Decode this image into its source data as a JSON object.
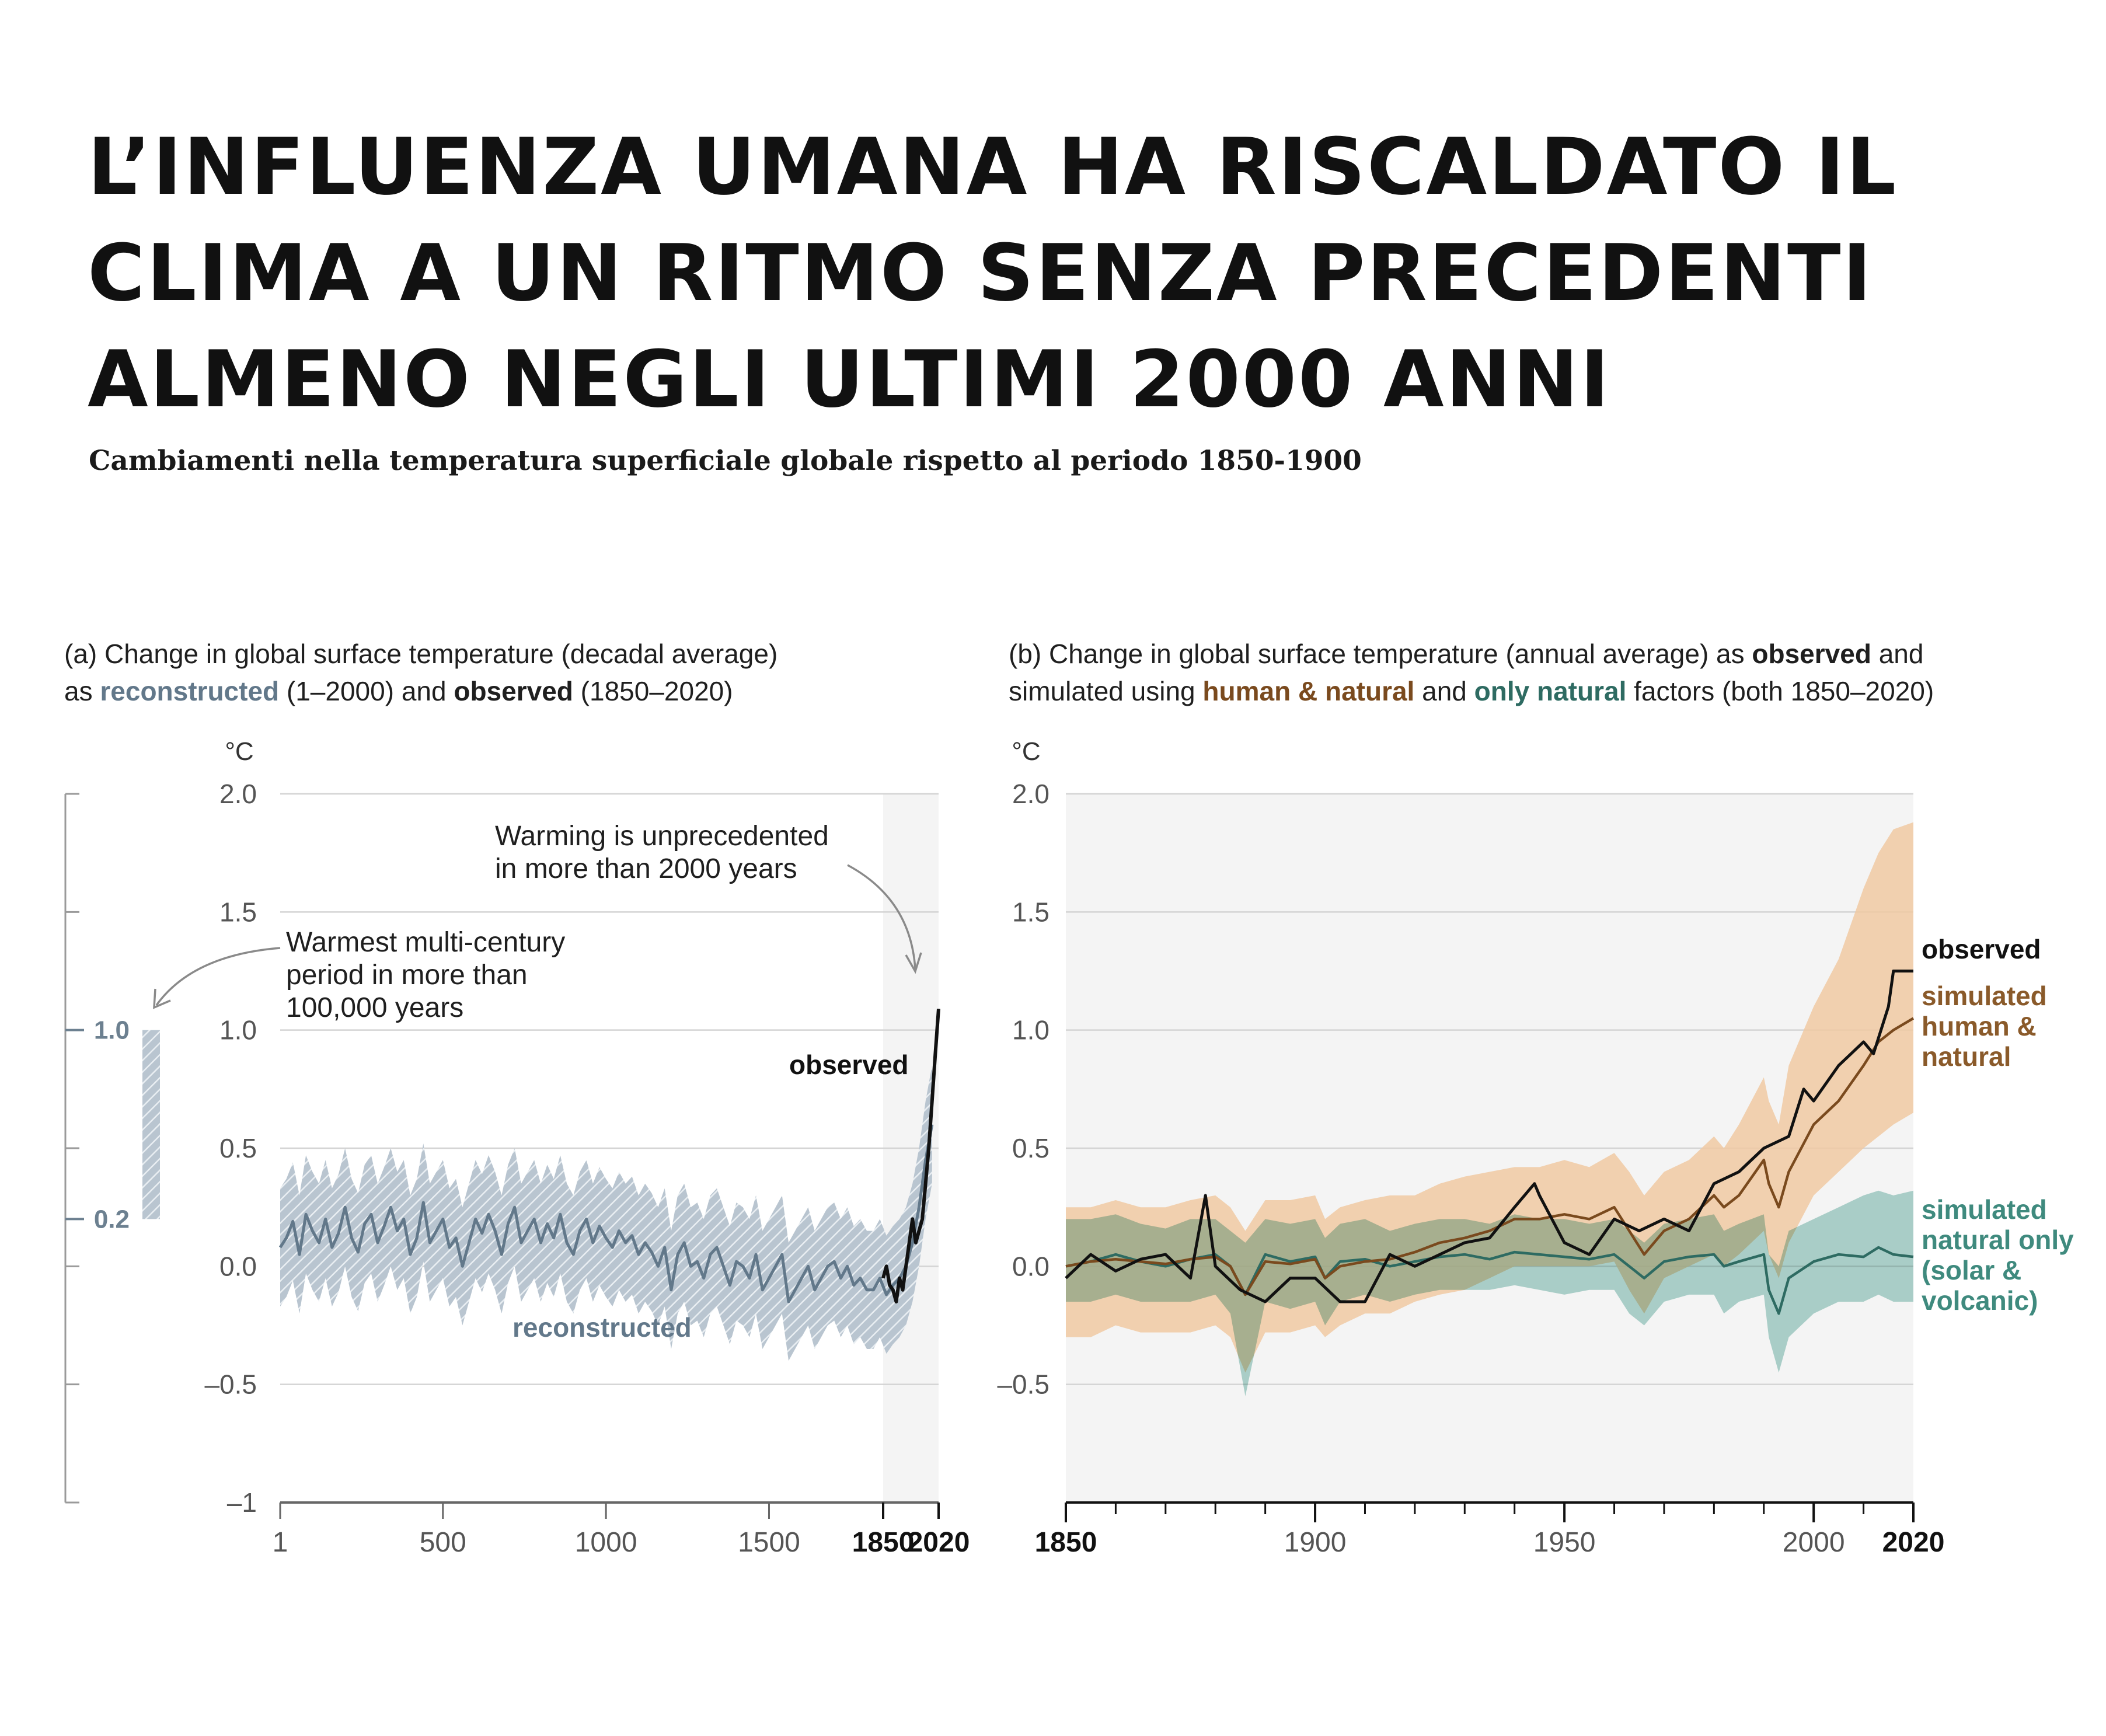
{
  "title_lines": [
    "L’INFLUENZA UMANA HA RISCALDATO IL",
    "CLIMA A UN RITMO SENZA PRECEDENTI",
    "ALMENO NEGLI ULTIMI 2000 ANNI"
  ],
  "subtitle": "Cambiamenti nella temperatura superficiale globale rispetto al periodo 1850-1900",
  "colors": {
    "reconstructed": "#62788a",
    "reconstructed_band": "#b9c5d0",
    "observed": "#111111",
    "human_natural": "#7a4a1e",
    "human_natural_band": "#f0c9a2",
    "natural_only": "#2e6b62",
    "natural_only_band": "#7dbdb0",
    "highlight": "#f4f4f4",
    "grid": "#d4d4d4",
    "axis": "#666666"
  },
  "chart_data": [
    {
      "id": "a",
      "type": "line",
      "caption": {
        "l1": "(a) Change in global surface temperature (decadal average)",
        "l2_pre": "as ",
        "l2_recon": "reconstructed",
        "l2_mid": " (1–2000) and ",
        "l2_obs": "observed",
        "l2_post": " (1850–2020)"
      },
      "unit": "°C",
      "ylim": [
        -1,
        2
      ],
      "yticks": [
        {
          "v": 2,
          "label": "2.0"
        },
        {
          "v": 1.5,
          "label": "1.5"
        },
        {
          "v": 1,
          "label": "1.0"
        },
        {
          "v": 0.5,
          "label": "0.5"
        },
        {
          "v": 0,
          "label": "0.0"
        },
        {
          "v": -0.5,
          "label": "–0.5"
        },
        {
          "v": -1,
          "label": "–1"
        }
      ],
      "xlim": [
        1,
        2020
      ],
      "xticks": [
        {
          "v": 1,
          "label": "1",
          "bold": false
        },
        {
          "v": 500,
          "label": "500",
          "bold": false
        },
        {
          "v": 1000,
          "label": "1000",
          "bold": false
        },
        {
          "v": 1500,
          "label": "1500",
          "bold": false
        },
        {
          "v": 1850,
          "label": "1850",
          "bold": true
        },
        {
          "v": 2020,
          "label": "2020",
          "bold": true
        }
      ],
      "highlight_range": [
        1850,
        2020
      ],
      "series": [
        {
          "name": "reconstructed",
          "band_width": 0.25,
          "x": [
            1,
            20,
            40,
            60,
            80,
            100,
            120,
            140,
            160,
            180,
            200,
            220,
            240,
            260,
            280,
            300,
            320,
            340,
            360,
            380,
            400,
            420,
            440,
            460,
            480,
            500,
            520,
            540,
            560,
            580,
            600,
            620,
            640,
            660,
            680,
            700,
            720,
            740,
            760,
            780,
            800,
            820,
            840,
            860,
            880,
            900,
            920,
            940,
            960,
            980,
            1000,
            1020,
            1040,
            1060,
            1080,
            1100,
            1120,
            1140,
            1160,
            1180,
            1200,
            1220,
            1240,
            1260,
            1280,
            1300,
            1320,
            1340,
            1360,
            1380,
            1400,
            1420,
            1440,
            1460,
            1480,
            1500,
            1520,
            1540,
            1560,
            1580,
            1600,
            1620,
            1640,
            1660,
            1680,
            1700,
            1720,
            1740,
            1760,
            1780,
            1800,
            1820,
            1840,
            1860,
            1880,
            1900,
            1920,
            1940,
            1960,
            1980,
            2000
          ],
          "y": [
            0.08,
            0.12,
            0.19,
            0.05,
            0.22,
            0.15,
            0.1,
            0.2,
            0.08,
            0.14,
            0.25,
            0.12,
            0.06,
            0.18,
            0.22,
            0.1,
            0.17,
            0.25,
            0.15,
            0.2,
            0.05,
            0.12,
            0.27,
            0.1,
            0.15,
            0.2,
            0.08,
            0.12,
            0.0,
            0.1,
            0.2,
            0.14,
            0.22,
            0.15,
            0.05,
            0.18,
            0.25,
            0.1,
            0.15,
            0.2,
            0.1,
            0.18,
            0.12,
            0.22,
            0.1,
            0.05,
            0.15,
            0.2,
            0.1,
            0.17,
            0.12,
            0.08,
            0.15,
            0.1,
            0.13,
            0.05,
            0.1,
            0.06,
            0.0,
            0.08,
            -0.1,
            0.05,
            0.1,
            0.0,
            0.02,
            -0.05,
            0.05,
            0.08,
            0.0,
            -0.08,
            0.02,
            0.0,
            -0.05,
            0.05,
            -0.1,
            -0.05,
            0.0,
            0.05,
            -0.15,
            -0.1,
            -0.05,
            0.0,
            -0.1,
            -0.05,
            0.0,
            0.02,
            -0.05,
            0.0,
            -0.08,
            -0.05,
            -0.1,
            -0.1,
            -0.05,
            -0.12,
            -0.08,
            -0.05,
            0.0,
            0.1,
            0.25,
            0.45,
            0.6
          ]
        },
        {
          "name": "observed",
          "label": "observed",
          "x": [
            1850,
            1860,
            1870,
            1880,
            1890,
            1900,
            1910,
            1920,
            1930,
            1940,
            1950,
            1960,
            1970,
            1980,
            1990,
            2000,
            2010,
            2020
          ],
          "y": [
            -0.05,
            0.0,
            -0.08,
            -0.1,
            -0.15,
            -0.05,
            -0.1,
            0.0,
            0.1,
            0.2,
            0.1,
            0.15,
            0.2,
            0.35,
            0.5,
            0.7,
            0.9,
            1.09
          ]
        }
      ],
      "annotations": {
        "reconstructed_label": "reconstructed",
        "observed_label": "observed",
        "unprecedented": [
          "Warming is unprecedented",
          "in more than 2000 years"
        ],
        "warmest": [
          "Warmest multi-century",
          "period in more than",
          "100,000 years"
        ]
      },
      "side_scale": {
        "ylim": [
          -1,
          2
        ],
        "top": 1.0,
        "bottom": 0.2,
        "top_label": "1.0",
        "bottom_label": "0.2"
      }
    },
    {
      "id": "b",
      "type": "line",
      "caption": {
        "l1_pre": "(b) Change in global surface temperature (annual average) as ",
        "l1_obs": "observed",
        "l1_post": " and",
        "l2_pre": "simulated using ",
        "l2_hn": "human & natural",
        "l2_mid": " and ",
        "l2_nat": "only natural",
        "l2_post": " factors (both 1850–2020)"
      },
      "unit": "°C",
      "ylim": [
        -1,
        2
      ],
      "yticks": [
        {
          "v": 2,
          "label": "2.0"
        },
        {
          "v": 1.5,
          "label": "1.5"
        },
        {
          "v": 1,
          "label": "1.0"
        },
        {
          "v": 0.5,
          "label": "0.5"
        },
        {
          "v": 0,
          "label": "0.0"
        },
        {
          "v": -0.5,
          "label": "–0.5"
        }
      ],
      "xlim": [
        1850,
        2020
      ],
      "xticks": [
        {
          "v": 1850,
          "label": "1850",
          "bold": true
        },
        {
          "v": 1900,
          "label": "1900",
          "bold": false
        },
        {
          "v": 1950,
          "label": "1950",
          "bold": false
        },
        {
          "v": 2000,
          "label": "2000",
          "bold": false
        },
        {
          "v": 2020,
          "label": "2020",
          "bold": true
        }
      ],
      "minor_xtick_step": 10,
      "series": [
        {
          "name": "simulated natural only",
          "label_lines": [
            "simulated",
            "natural only",
            "(solar &",
            "volcanic)"
          ],
          "x": [
            1850,
            1855,
            1860,
            1865,
            1870,
            1875,
            1880,
            1883,
            1886,
            1890,
            1895,
            1900,
            1902,
            1905,
            1910,
            1915,
            1920,
            1925,
            1930,
            1935,
            1940,
            1945,
            1950,
            1955,
            1960,
            1963,
            1966,
            1970,
            1975,
            1980,
            1982,
            1985,
            1990,
            1991,
            1993,
            1995,
            2000,
            2005,
            2010,
            2013,
            2016,
            2020
          ],
          "y": [
            0.0,
            0.02,
            0.05,
            0.02,
            0.0,
            0.03,
            0.05,
            0.0,
            -0.12,
            0.05,
            0.02,
            0.04,
            -0.05,
            0.02,
            0.03,
            0.0,
            0.02,
            0.04,
            0.05,
            0.03,
            0.06,
            0.05,
            0.04,
            0.03,
            0.05,
            0.0,
            -0.05,
            0.02,
            0.04,
            0.05,
            0.0,
            0.02,
            0.05,
            -0.1,
            -0.2,
            -0.05,
            0.02,
            0.05,
            0.04,
            0.08,
            0.05,
            0.04
          ],
          "band_lo": [
            -0.15,
            -0.15,
            -0.12,
            -0.15,
            -0.15,
            -0.15,
            -0.12,
            -0.2,
            -0.55,
            -0.15,
            -0.18,
            -0.15,
            -0.25,
            -0.15,
            -0.12,
            -0.15,
            -0.12,
            -0.1,
            -0.1,
            -0.1,
            -0.08,
            -0.1,
            -0.12,
            -0.1,
            -0.1,
            -0.2,
            -0.25,
            -0.15,
            -0.12,
            -0.12,
            -0.2,
            -0.15,
            -0.12,
            -0.3,
            -0.45,
            -0.3,
            -0.2,
            -0.15,
            -0.15,
            -0.12,
            -0.15,
            -0.15
          ],
          "band_hi": [
            0.2,
            0.2,
            0.22,
            0.18,
            0.16,
            0.2,
            0.2,
            0.15,
            0.1,
            0.2,
            0.18,
            0.2,
            0.12,
            0.18,
            0.2,
            0.15,
            0.18,
            0.2,
            0.2,
            0.18,
            0.22,
            0.2,
            0.2,
            0.18,
            0.2,
            0.15,
            0.1,
            0.18,
            0.2,
            0.22,
            0.15,
            0.18,
            0.22,
            0.05,
            0.0,
            0.15,
            0.2,
            0.25,
            0.3,
            0.32,
            0.3,
            0.32
          ]
        },
        {
          "name": "simulated human & natural",
          "label_lines": [
            "simulated",
            "human &",
            "natural"
          ],
          "x": [
            1850,
            1855,
            1860,
            1865,
            1870,
            1875,
            1880,
            1883,
            1886,
            1890,
            1895,
            1900,
            1902,
            1905,
            1910,
            1915,
            1920,
            1925,
            1930,
            1935,
            1940,
            1945,
            1950,
            1955,
            1960,
            1963,
            1966,
            1970,
            1975,
            1980,
            1982,
            1985,
            1990,
            1991,
            1993,
            1995,
            2000,
            2005,
            2010,
            2013,
            2016,
            2020
          ],
          "y": [
            0.0,
            0.02,
            0.03,
            0.02,
            0.01,
            0.03,
            0.04,
            0.0,
            -0.12,
            0.02,
            0.01,
            0.03,
            -0.05,
            0.0,
            0.02,
            0.03,
            0.06,
            0.1,
            0.12,
            0.15,
            0.2,
            0.2,
            0.22,
            0.2,
            0.25,
            0.15,
            0.05,
            0.15,
            0.2,
            0.3,
            0.25,
            0.3,
            0.45,
            0.35,
            0.25,
            0.4,
            0.6,
            0.7,
            0.85,
            0.95,
            1.0,
            1.05
          ],
          "band_lo": [
            -0.3,
            -0.3,
            -0.25,
            -0.28,
            -0.28,
            -0.28,
            -0.25,
            -0.3,
            -0.45,
            -0.28,
            -0.28,
            -0.25,
            -0.3,
            -0.25,
            -0.2,
            -0.2,
            -0.15,
            -0.12,
            -0.1,
            -0.05,
            0.0,
            0.0,
            0.0,
            0.0,
            0.02,
            -0.1,
            -0.2,
            -0.05,
            0.0,
            0.05,
            0.0,
            0.05,
            0.15,
            0.05,
            -0.05,
            0.1,
            0.3,
            0.4,
            0.5,
            0.55,
            0.6,
            0.65
          ],
          "band_hi": [
            0.25,
            0.25,
            0.28,
            0.25,
            0.25,
            0.28,
            0.3,
            0.25,
            0.15,
            0.28,
            0.28,
            0.3,
            0.2,
            0.25,
            0.28,
            0.3,
            0.3,
            0.35,
            0.38,
            0.4,
            0.42,
            0.42,
            0.45,
            0.42,
            0.48,
            0.4,
            0.3,
            0.4,
            0.45,
            0.55,
            0.5,
            0.6,
            0.8,
            0.7,
            0.6,
            0.85,
            1.1,
            1.3,
            1.6,
            1.75,
            1.85,
            1.88
          ]
        },
        {
          "name": "observed",
          "label": "observed",
          "x": [
            1850,
            1855,
            1860,
            1865,
            1870,
            1875,
            1878,
            1880,
            1885,
            1890,
            1895,
            1900,
            1905,
            1910,
            1915,
            1920,
            1925,
            1930,
            1935,
            1940,
            1944,
            1945,
            1950,
            1955,
            1960,
            1965,
            1970,
            1975,
            1980,
            1985,
            1990,
            1995,
            1998,
            2000,
            2005,
            2010,
            2012,
            2015,
            2016,
            2020
          ],
          "y": [
            -0.05,
            0.05,
            -0.02,
            0.03,
            0.05,
            -0.05,
            0.3,
            0.0,
            -0.1,
            -0.15,
            -0.05,
            -0.05,
            -0.15,
            -0.15,
            0.05,
            0.0,
            0.05,
            0.1,
            0.12,
            0.25,
            0.35,
            0.3,
            0.1,
            0.05,
            0.2,
            0.15,
            0.2,
            0.15,
            0.35,
            0.4,
            0.5,
            0.55,
            0.75,
            0.7,
            0.85,
            0.95,
            0.9,
            1.1,
            1.25,
            1.25
          ]
        }
      ]
    }
  ]
}
